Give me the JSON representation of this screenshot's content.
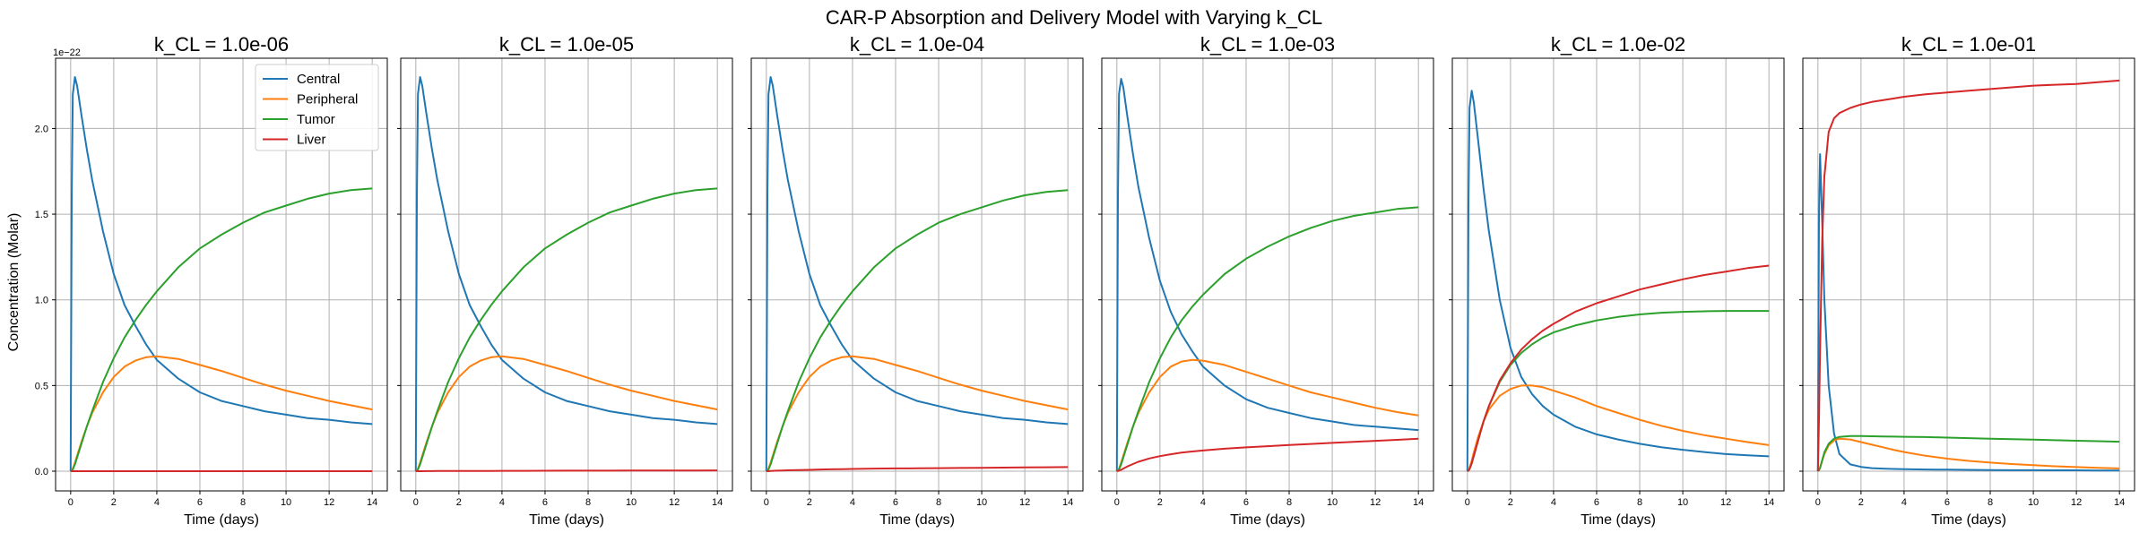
{
  "figure": {
    "title": "CAR-P Absorption and Delivery Model with Varying k_CL"
  },
  "chart_data": {
    "type": "line",
    "xlabel": "Time (days)",
    "ylabel": "Concentration (Molar)",
    "y_offset_label": "1e−22",
    "xlim": [
      -0.7,
      14.7
    ],
    "ylim": [
      -0.115,
      2.41
    ],
    "x_ticks": [
      0,
      2,
      4,
      6,
      8,
      10,
      12,
      14
    ],
    "y_ticks": [
      0.0,
      0.5,
      1.0,
      1.5,
      2.0
    ],
    "y_tick_labels": [
      "0.0",
      "0.5",
      "1.0",
      "1.5",
      "2.0"
    ],
    "grid": true,
    "sharey": true,
    "legend_position": "upper-right",
    "legend_panel": 0,
    "series_colors": {
      "Central": "#1f77b4",
      "Peripheral": "#ff7f0e",
      "Tumor": "#2ca02c",
      "Liver": "#d62728"
    },
    "series_names": [
      "Central",
      "Peripheral",
      "Tumor",
      "Liver"
    ],
    "x": [
      0,
      0.05,
      0.1,
      0.2,
      0.3,
      0.5,
      0.75,
      1,
      1.5,
      2,
      2.5,
      3,
      3.5,
      4,
      5,
      6,
      7,
      8,
      9,
      10,
      11,
      12,
      13,
      14
    ],
    "panels": [
      {
        "title": "k_CL = 1.0e-06",
        "series": [
          {
            "name": "Central",
            "values": [
              0,
              1.6,
              2.2,
              2.3,
              2.25,
              2.08,
              1.88,
              1.7,
              1.4,
              1.15,
              0.97,
              0.85,
              0.74,
              0.65,
              0.54,
              0.46,
              0.41,
              0.38,
              0.35,
              0.33,
              0.31,
              0.3,
              0.285,
              0.275
            ]
          },
          {
            "name": "Peripheral",
            "values": [
              0,
              0.004,
              0.015,
              0.05,
              0.09,
              0.17,
              0.26,
              0.34,
              0.46,
              0.55,
              0.61,
              0.645,
              0.665,
              0.67,
              0.655,
              0.62,
              0.585,
              0.545,
              0.505,
              0.47,
              0.44,
              0.41,
              0.385,
              0.36
            ]
          },
          {
            "name": "Tumor",
            "values": [
              0,
              0.002,
              0.01,
              0.04,
              0.08,
              0.16,
              0.26,
              0.35,
              0.52,
              0.66,
              0.78,
              0.88,
              0.97,
              1.05,
              1.19,
              1.3,
              1.38,
              1.45,
              1.51,
              1.55,
              1.59,
              1.62,
              1.64,
              1.65
            ]
          },
          {
            "name": "Liver",
            "values": [
              0,
              0,
              0,
              0,
              0,
              0,
              0,
              0,
              0,
              0,
              0,
              0,
              0,
              0,
              0,
              0,
              0,
              0,
              0,
              0,
              0,
              0,
              0,
              0
            ]
          }
        ]
      },
      {
        "title": "k_CL = 1.0e-05",
        "series": [
          {
            "name": "Central",
            "values": [
              0,
              1.6,
              2.2,
              2.3,
              2.25,
              2.08,
              1.88,
              1.7,
              1.4,
              1.15,
              0.97,
              0.85,
              0.74,
              0.65,
              0.54,
              0.46,
              0.41,
              0.38,
              0.35,
              0.33,
              0.31,
              0.3,
              0.285,
              0.275
            ]
          },
          {
            "name": "Peripheral",
            "values": [
              0,
              0.004,
              0.015,
              0.05,
              0.09,
              0.17,
              0.26,
              0.34,
              0.46,
              0.55,
              0.61,
              0.645,
              0.665,
              0.67,
              0.655,
              0.62,
              0.585,
              0.545,
              0.505,
              0.47,
              0.44,
              0.41,
              0.385,
              0.36
            ]
          },
          {
            "name": "Tumor",
            "values": [
              0,
              0.002,
              0.01,
              0.04,
              0.08,
              0.16,
              0.26,
              0.35,
              0.52,
              0.66,
              0.78,
              0.88,
              0.97,
              1.05,
              1.19,
              1.3,
              1.38,
              1.45,
              1.51,
              1.55,
              1.59,
              1.62,
              1.64,
              1.65
            ]
          },
          {
            "name": "Liver",
            "values": [
              0,
              0,
              0,
              0,
              0,
              0.0005,
              0.0005,
              0.001,
              0.001,
              0.001,
              0.0015,
              0.0015,
              0.0015,
              0.002,
              0.002,
              0.0025,
              0.003,
              0.003,
              0.003,
              0.0035,
              0.004,
              0.004,
              0.004,
              0.0045
            ]
          }
        ]
      },
      {
        "title": "k_CL = 1.0e-04",
        "series": [
          {
            "name": "Central",
            "values": [
              0,
              1.6,
              2.2,
              2.3,
              2.25,
              2.08,
              1.88,
              1.7,
              1.4,
              1.15,
              0.97,
              0.85,
              0.74,
              0.65,
              0.54,
              0.46,
              0.41,
              0.38,
              0.35,
              0.33,
              0.31,
              0.3,
              0.285,
              0.275
            ]
          },
          {
            "name": "Peripheral",
            "values": [
              0,
              0.004,
              0.015,
              0.05,
              0.09,
              0.17,
              0.26,
              0.34,
              0.46,
              0.55,
              0.61,
              0.645,
              0.665,
              0.67,
              0.655,
              0.62,
              0.585,
              0.545,
              0.505,
              0.47,
              0.44,
              0.41,
              0.385,
              0.36
            ]
          },
          {
            "name": "Tumor",
            "values": [
              0,
              0.002,
              0.01,
              0.04,
              0.08,
              0.16,
              0.26,
              0.35,
              0.52,
              0.66,
              0.78,
              0.88,
              0.97,
              1.05,
              1.19,
              1.3,
              1.38,
              1.45,
              1.5,
              1.54,
              1.58,
              1.61,
              1.63,
              1.64
            ]
          },
          {
            "name": "Liver",
            "values": [
              0,
              0,
              0,
              0.001,
              0.002,
              0.003,
              0.004,
              0.005,
              0.007,
              0.008,
              0.01,
              0.011,
              0.012,
              0.013,
              0.015,
              0.016,
              0.017,
              0.018,
              0.019,
              0.02,
              0.021,
              0.022,
              0.023,
              0.024
            ]
          }
        ]
      },
      {
        "title": "k_CL = 1.0e-03",
        "series": [
          {
            "name": "Central",
            "values": [
              0,
              1.6,
              2.2,
              2.29,
              2.24,
              2.06,
              1.85,
              1.66,
              1.36,
              1.11,
              0.93,
              0.8,
              0.7,
              0.61,
              0.5,
              0.42,
              0.37,
              0.34,
              0.31,
              0.29,
              0.27,
              0.26,
              0.25,
              0.24
            ]
          },
          {
            "name": "Peripheral",
            "values": [
              0,
              0.004,
              0.015,
              0.05,
              0.09,
              0.17,
              0.26,
              0.34,
              0.46,
              0.55,
              0.61,
              0.64,
              0.65,
              0.645,
              0.62,
              0.58,
              0.54,
              0.5,
              0.46,
              0.43,
              0.4,
              0.37,
              0.345,
              0.325
            ]
          },
          {
            "name": "Tumor",
            "values": [
              0,
              0.002,
              0.01,
              0.04,
              0.08,
              0.16,
              0.26,
              0.35,
              0.52,
              0.66,
              0.78,
              0.88,
              0.96,
              1.03,
              1.15,
              1.24,
              1.31,
              1.37,
              1.42,
              1.46,
              1.49,
              1.51,
              1.53,
              1.54
            ]
          },
          {
            "name": "Liver",
            "values": [
              0,
              0.001,
              0.003,
              0.008,
              0.015,
              0.028,
              0.042,
              0.055,
              0.074,
              0.088,
              0.099,
              0.108,
              0.115,
              0.121,
              0.131,
              0.139,
              0.146,
              0.153,
              0.159,
              0.165,
              0.171,
              0.177,
              0.183,
              0.189
            ]
          }
        ]
      },
      {
        "title": "k_CL = 1.0e-02",
        "series": [
          {
            "name": "Central",
            "values": [
              0,
              1.55,
              2.12,
              2.22,
              2.15,
              1.93,
              1.65,
              1.4,
              1.0,
              0.72,
              0.55,
              0.45,
              0.38,
              0.33,
              0.26,
              0.215,
              0.185,
              0.16,
              0.14,
              0.125,
              0.112,
              0.1,
              0.093,
              0.087
            ]
          },
          {
            "name": "Peripheral",
            "values": [
              0,
              0.005,
              0.02,
              0.06,
              0.11,
              0.2,
              0.29,
              0.36,
              0.44,
              0.48,
              0.5,
              0.5,
              0.49,
              0.47,
              0.43,
              0.38,
              0.34,
              0.3,
              0.265,
              0.235,
              0.21,
              0.19,
              0.17,
              0.152
            ]
          },
          {
            "name": "Tumor",
            "values": [
              0,
              0.003,
              0.012,
              0.045,
              0.09,
              0.18,
              0.29,
              0.38,
              0.52,
              0.62,
              0.69,
              0.74,
              0.78,
              0.81,
              0.85,
              0.88,
              0.9,
              0.915,
              0.925,
              0.93,
              0.933,
              0.935,
              0.935,
              0.935
            ]
          },
          {
            "name": "Liver",
            "values": [
              0,
              0.003,
              0.012,
              0.045,
              0.09,
              0.18,
              0.29,
              0.38,
              0.53,
              0.63,
              0.71,
              0.77,
              0.82,
              0.86,
              0.93,
              0.98,
              1.02,
              1.06,
              1.09,
              1.12,
              1.145,
              1.165,
              1.185,
              1.2
            ]
          }
        ]
      },
      {
        "title": "k_CL = 1.0e-01",
        "series": [
          {
            "name": "Central",
            "values": [
              0,
              1.5,
              1.85,
              1.45,
              1.0,
              0.5,
              0.22,
              0.1,
              0.04,
              0.025,
              0.018,
              0.015,
              0.013,
              0.012,
              0.01,
              0.009,
              0.008,
              0.007,
              0.006,
              0.006,
              0.005,
              0.005,
              0.004,
              0.004
            ]
          },
          {
            "name": "Peripheral",
            "values": [
              0,
              0.005,
              0.02,
              0.06,
              0.1,
              0.15,
              0.18,
              0.19,
              0.185,
              0.17,
              0.155,
              0.14,
              0.125,
              0.112,
              0.09,
              0.073,
              0.06,
              0.05,
              0.042,
              0.035,
              0.029,
              0.024,
              0.02,
              0.016
            ]
          },
          {
            "name": "Tumor",
            "values": [
              0,
              0.005,
              0.02,
              0.065,
              0.11,
              0.16,
              0.19,
              0.2,
              0.205,
              0.205,
              0.204,
              0.203,
              0.202,
              0.201,
              0.199,
              0.196,
              0.193,
              0.19,
              0.187,
              0.184,
              0.181,
              0.178,
              0.175,
              0.172
            ]
          },
          {
            "name": "Liver",
            "values": [
              0,
              0.3,
              0.7,
              1.35,
              1.72,
              1.98,
              2.06,
              2.09,
              2.12,
              2.14,
              2.155,
              2.165,
              2.175,
              2.185,
              2.2,
              2.21,
              2.22,
              2.23,
              2.24,
              2.25,
              2.255,
              2.26,
              2.27,
              2.28
            ]
          }
        ]
      }
    ]
  }
}
